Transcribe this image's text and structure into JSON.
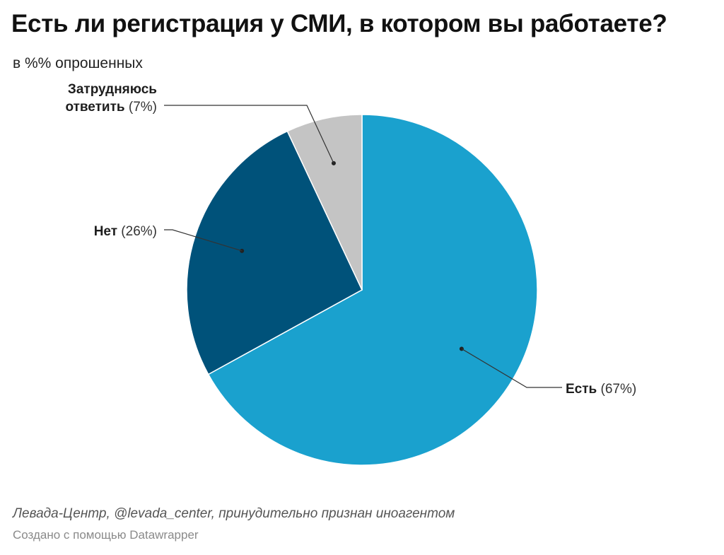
{
  "title": "Есть ли регистрация у СМИ, в котором вы работаете?",
  "subtitle": "в %% опрошенных",
  "source": "Левада-Центр, @levada_center, принудительно признан иноагентом",
  "credit": "Создано с помощью Datawrapper",
  "chart_data": {
    "type": "pie",
    "slices": [
      {
        "label": "Есть",
        "label_lines": [
          "Есть"
        ],
        "value": 67,
        "value_text": "(67%)",
        "color": "#1aa1ce"
      },
      {
        "label": "Нет",
        "label_lines": [
          "Нет"
        ],
        "value": 26,
        "value_text": "(26%)",
        "color": "#00527a"
      },
      {
        "label": "Затрудняюсь ответить",
        "label_lines": [
          "Затрудняюсь",
          "ответить"
        ],
        "value": 7,
        "value_text": "(7%)",
        "color": "#c4c4c4"
      }
    ],
    "start": "top",
    "direction": "clockwise",
    "legend": "none"
  }
}
